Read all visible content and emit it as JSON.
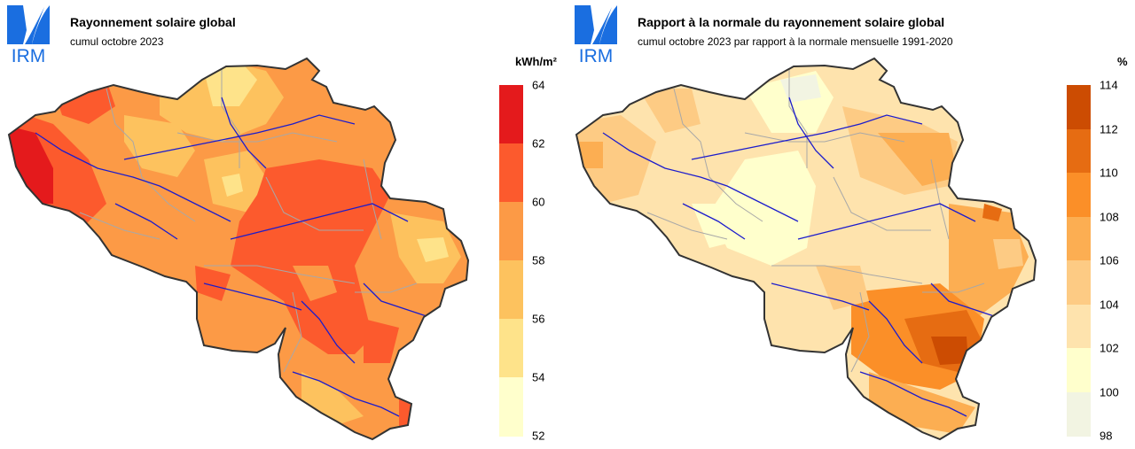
{
  "left_panel": {
    "logo_text": "IRM",
    "title": "Rayonnement solaire global",
    "subtitle": "cumul octobre 2023",
    "legend": {
      "unit": "kWh/m²",
      "ticks": [
        "64",
        "62",
        "60",
        "58",
        "56",
        "54",
        "52"
      ],
      "colors": [
        "#e41a1c",
        "#fc5a2d",
        "#fc9a46",
        "#fdc25e",
        "#fee38a",
        "#ffffcc"
      ]
    }
  },
  "right_panel": {
    "logo_text": "IRM",
    "title": "Rapport à la normale du rayonnement solaire global",
    "subtitle": "cumul octobre 2023 par rapport à la normale mensuelle 1991-2020",
    "legend": {
      "unit": "%",
      "ticks": [
        "114",
        "112",
        "110",
        "108",
        "106",
        "104",
        "102",
        "100",
        "98"
      ],
      "colors": [
        "#cc4c02",
        "#e66c12",
        "#fb8f28",
        "#fcae52",
        "#fdcb84",
        "#fee3ad",
        "#ffffcc",
        "#f2f4e2"
      ]
    }
  },
  "colors": {
    "logo_blue": "#1a6ee0",
    "border": "#333333",
    "rivers": "#1c1ccc",
    "provinces": "#a8a8a8"
  }
}
